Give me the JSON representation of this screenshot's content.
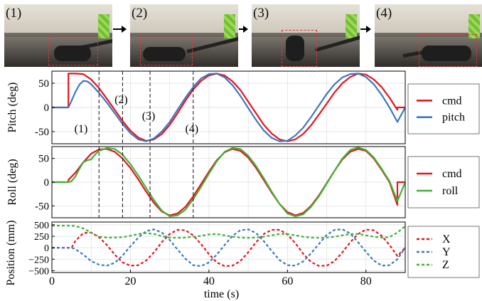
{
  "snapshots": [
    {
      "label": "(1)"
    },
    {
      "label": "(2)"
    },
    {
      "label": "(3)"
    },
    {
      "label": "(4)"
    }
  ],
  "colors": {
    "cmd": "#e8141c",
    "pitch": "#3b78c2",
    "roll": "#3fb437",
    "x": "#e8141c",
    "y": "#3b78c2",
    "z": "#3fb437",
    "roi": "#d63a3a"
  },
  "chart_data": [
    {
      "type": "line",
      "ylabel": "Pitch (deg)",
      "xlim": [
        0,
        90
      ],
      "ylim": [
        -75,
        75
      ],
      "yticks": [
        50,
        0,
        -50
      ],
      "grid": true,
      "legend": "right",
      "series": [
        {
          "name": "cmd",
          "color": "#e8141c",
          "x": [
            0,
            4.2,
            4.2,
            4.2,
            6,
            8,
            10,
            12,
            14,
            16,
            18,
            20,
            22,
            24,
            26,
            28,
            30,
            32,
            34,
            36,
            38,
            40,
            42,
            44,
            46,
            48,
            50,
            52,
            54,
            56,
            58,
            60,
            62,
            64,
            66,
            68,
            70,
            72,
            74,
            76,
            78,
            80,
            82,
            84,
            86,
            88,
            88,
            90
          ],
          "y": [
            0,
            0,
            70,
            70,
            70,
            69,
            58,
            40,
            18,
            -5,
            -28,
            -48,
            -62,
            -69,
            -66,
            -55,
            -36,
            -12,
            14,
            37,
            55,
            66,
            70,
            66,
            54,
            36,
            12,
            -12,
            -36,
            -54,
            -66,
            -70,
            -66,
            -55,
            -37,
            -15,
            8,
            31,
            50,
            63,
            70,
            68,
            58,
            42,
            20,
            -5,
            0,
            0
          ]
        },
        {
          "name": "pitch",
          "color": "#3b78c2",
          "x": [
            0,
            4.2,
            4.8,
            6,
            7,
            8,
            9,
            10,
            12,
            14,
            16,
            18,
            20,
            22,
            24,
            26,
            28,
            30,
            32,
            34,
            36,
            38,
            40,
            42,
            44,
            46,
            48,
            50,
            52,
            54,
            56,
            58,
            60,
            62,
            64,
            66,
            68,
            70,
            72,
            74,
            76,
            78,
            80,
            82,
            84,
            86,
            88,
            90
          ],
          "y": [
            0,
            0,
            10,
            32,
            47,
            55,
            54,
            48,
            30,
            10,
            -12,
            -34,
            -53,
            -66,
            -70,
            -64,
            -50,
            -30,
            -5,
            20,
            42,
            60,
            69,
            70,
            62,
            46,
            24,
            -1,
            -26,
            -48,
            -63,
            -70,
            -69,
            -58,
            -42,
            -20,
            4,
            28,
            48,
            62,
            69,
            70,
            63,
            48,
            26,
            0,
            -30,
            0
          ]
        }
      ]
    },
    {
      "type": "line",
      "ylabel": "Roll (deg)",
      "xlim": [
        0,
        90
      ],
      "ylim": [
        -75,
        75
      ],
      "yticks": [
        50,
        0,
        -50
      ],
      "grid": true,
      "legend": "right",
      "series": [
        {
          "name": "cmd",
          "color": "#e8141c",
          "x": [
            0,
            4.2,
            4.2,
            6,
            8,
            10,
            12,
            14,
            16,
            18,
            20,
            22,
            24,
            26,
            28,
            30,
            32,
            34,
            36,
            38,
            40,
            42,
            44,
            46,
            48,
            50,
            52,
            54,
            56,
            58,
            60,
            62,
            64,
            66,
            68,
            70,
            72,
            74,
            76,
            78,
            80,
            82,
            84,
            86,
            88,
            88,
            90
          ],
          "y": [
            0,
            0,
            5,
            20,
            42,
            60,
            69,
            70,
            64,
            50,
            30,
            6,
            -20,
            -44,
            -62,
            -70,
            -66,
            -52,
            -30,
            -4,
            22,
            46,
            63,
            70,
            66,
            52,
            30,
            4,
            -22,
            -46,
            -63,
            -70,
            -65,
            -50,
            -28,
            -2,
            24,
            48,
            64,
            70,
            66,
            50,
            26,
            0,
            -48,
            0,
            0
          ]
        },
        {
          "name": "roll",
          "color": "#3fb437",
          "x": [
            0,
            4.2,
            5,
            6,
            7,
            8,
            9,
            10,
            11,
            12,
            14,
            16,
            18,
            20,
            22,
            24,
            26,
            28,
            30,
            32,
            34,
            36,
            38,
            40,
            42,
            44,
            46,
            48,
            50,
            52,
            54,
            56,
            58,
            60,
            62,
            64,
            66,
            68,
            70,
            72,
            74,
            76,
            78,
            80,
            82,
            84,
            86,
            88,
            90
          ],
          "y": [
            0,
            0,
            2,
            12,
            28,
            42,
            46,
            48,
            58,
            66,
            72,
            70,
            58,
            38,
            14,
            -12,
            -38,
            -60,
            -72,
            -70,
            -58,
            -36,
            -10,
            18,
            44,
            64,
            72,
            70,
            56,
            34,
            8,
            -20,
            -46,
            -66,
            -72,
            -68,
            -52,
            -30,
            -3,
            24,
            50,
            68,
            73,
            68,
            52,
            28,
            2,
            -40,
            0
          ]
        }
      ]
    },
    {
      "type": "line",
      "ylabel": "Position (mm)",
      "xlabel": "time (s)",
      "xlim": [
        0,
        90
      ],
      "ylim": [
        -540,
        560
      ],
      "yticks": [
        500,
        250,
        0,
        -250,
        -500
      ],
      "yticklabels": [
        "500",
        "250",
        "0",
        "−250",
        "−500"
      ],
      "xticks": [
        0,
        20,
        40,
        60,
        80
      ],
      "xticklabels": [
        "0",
        "20",
        "40",
        "60",
        "80"
      ],
      "grid": true,
      "legend": "right",
      "series": [
        {
          "name": "X",
          "color": "#e8141c",
          "dash": "4,3",
          "x": [
            0,
            5,
            6,
            8,
            10,
            12,
            14,
            16,
            18,
            20,
            22,
            24,
            26,
            28,
            30,
            32,
            34,
            36,
            38,
            40,
            42,
            44,
            46,
            48,
            50,
            52,
            54,
            56,
            58,
            60,
            62,
            64,
            66,
            68,
            70,
            72,
            74,
            76,
            78,
            80,
            82,
            84,
            86,
            88,
            90
          ],
          "y": [
            0,
            0,
            150,
            320,
            330,
            230,
            60,
            -150,
            -320,
            -390,
            -380,
            -280,
            -100,
            120,
            300,
            390,
            380,
            270,
            80,
            -140,
            -320,
            -400,
            -390,
            -290,
            -100,
            120,
            300,
            390,
            390,
            290,
            100,
            -130,
            -310,
            -395,
            -390,
            -290,
            -100,
            120,
            300,
            395,
            380,
            260,
            60,
            -180,
            0
          ]
        },
        {
          "name": "Y",
          "color": "#3b78c2",
          "dash": "4,3",
          "x": [
            0,
            5,
            6,
            8,
            10,
            12,
            14,
            16,
            18,
            20,
            22,
            24,
            26,
            28,
            30,
            32,
            34,
            36,
            38,
            40,
            42,
            44,
            46,
            48,
            50,
            52,
            54,
            56,
            58,
            60,
            62,
            64,
            66,
            68,
            70,
            72,
            74,
            76,
            78,
            80,
            82,
            84,
            86,
            88,
            90
          ],
          "y": [
            0,
            0,
            -30,
            -150,
            -290,
            -370,
            -390,
            -330,
            -170,
            30,
            220,
            360,
            400,
            330,
            170,
            -40,
            -240,
            -380,
            -400,
            -320,
            -150,
            60,
            260,
            380,
            400,
            320,
            140,
            -70,
            -270,
            -380,
            -390,
            -300,
            -120,
            80,
            280,
            390,
            400,
            310,
            120,
            -90,
            -280,
            -390,
            -380,
            -250,
            0
          ]
        },
        {
          "name": "Z",
          "color": "#3fb437",
          "dash": "4,3",
          "x": [
            0,
            5,
            6,
            8,
            10,
            12,
            14,
            16,
            18,
            20,
            22,
            24,
            26,
            28,
            30,
            32,
            34,
            36,
            38,
            40,
            42,
            44,
            46,
            48,
            50,
            52,
            54,
            56,
            58,
            60,
            62,
            64,
            66,
            68,
            70,
            72,
            74,
            76,
            78,
            80,
            82,
            84,
            86,
            88,
            90
          ],
          "y": [
            480,
            480,
            470,
            420,
            330,
            240,
            220,
            220,
            230,
            260,
            300,
            320,
            300,
            250,
            220,
            215,
            220,
            240,
            260,
            290,
            300,
            270,
            240,
            220,
            215,
            220,
            240,
            270,
            300,
            300,
            270,
            240,
            220,
            215,
            220,
            240,
            270,
            300,
            300,
            270,
            240,
            220,
            230,
            330,
            470
          ]
        }
      ]
    }
  ],
  "markers": {
    "x": [
      12,
      18,
      25,
      36
    ],
    "labels": [
      "(1)",
      "(2)",
      "(3)",
      "(4)"
    ]
  }
}
